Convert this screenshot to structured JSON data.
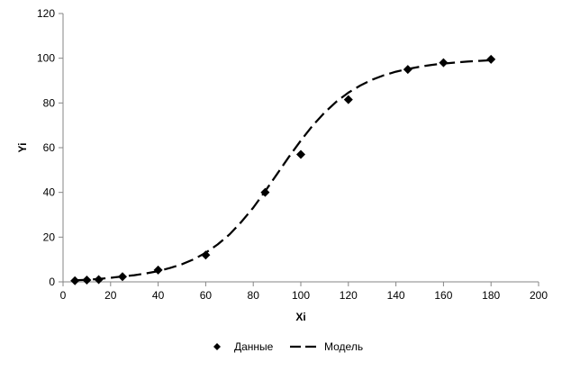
{
  "chart_data": {
    "type": "scatter",
    "title": "",
    "xlabel": "Xi",
    "ylabel": "Yi",
    "xlim": [
      0,
      200
    ],
    "ylim": [
      0,
      120
    ],
    "x_ticks": [
      0,
      20,
      40,
      60,
      80,
      100,
      120,
      140,
      160,
      180,
      200
    ],
    "y_ticks": [
      0,
      20,
      40,
      60,
      80,
      100,
      120
    ],
    "x_tick_labels": [
      "0",
      "20",
      "40",
      "60",
      "80",
      "100",
      "120",
      "140",
      "160",
      "180",
      "200"
    ],
    "y_tick_labels": [
      "0",
      "20",
      "40",
      "60",
      "80",
      "100",
      "120"
    ],
    "grid": false,
    "legend_position": "bottom",
    "series": [
      {
        "name": "Данные",
        "kind": "markers",
        "marker": "diamond",
        "color": "#000000",
        "x": [
          5,
          10,
          15,
          25,
          40,
          60,
          85,
          100,
          120,
          145,
          160,
          180
        ],
        "y": [
          0.5,
          0.8,
          1.0,
          2.3,
          5.3,
          12,
          40,
          57,
          81.5,
          95,
          98,
          99.5
        ]
      },
      {
        "name": "Модель",
        "kind": "dashed-line",
        "color": "#000000",
        "x": [
          5,
          10,
          15,
          20,
          25,
          30,
          35,
          40,
          45,
          50,
          55,
          60,
          65,
          70,
          75,
          80,
          85,
          90,
          95,
          100,
          105,
          110,
          115,
          120,
          125,
          130,
          135,
          140,
          145,
          150,
          155,
          160,
          165,
          170,
          175,
          180
        ],
        "y": [
          0.7,
          0.9,
          1.3,
          1.8,
          2.4,
          3.0,
          3.8,
          4.8,
          6.2,
          7.9,
          10.1,
          13.0,
          16.7,
          21.2,
          26.8,
          33.2,
          40.5,
          48.2,
          55.9,
          63.2,
          69.9,
          75.7,
          80.6,
          84.6,
          87.8,
          90.4,
          92.4,
          94.0,
          95.2,
          96.2,
          97.0,
          97.6,
          98.1,
          98.5,
          98.8,
          99.1
        ]
      }
    ]
  }
}
